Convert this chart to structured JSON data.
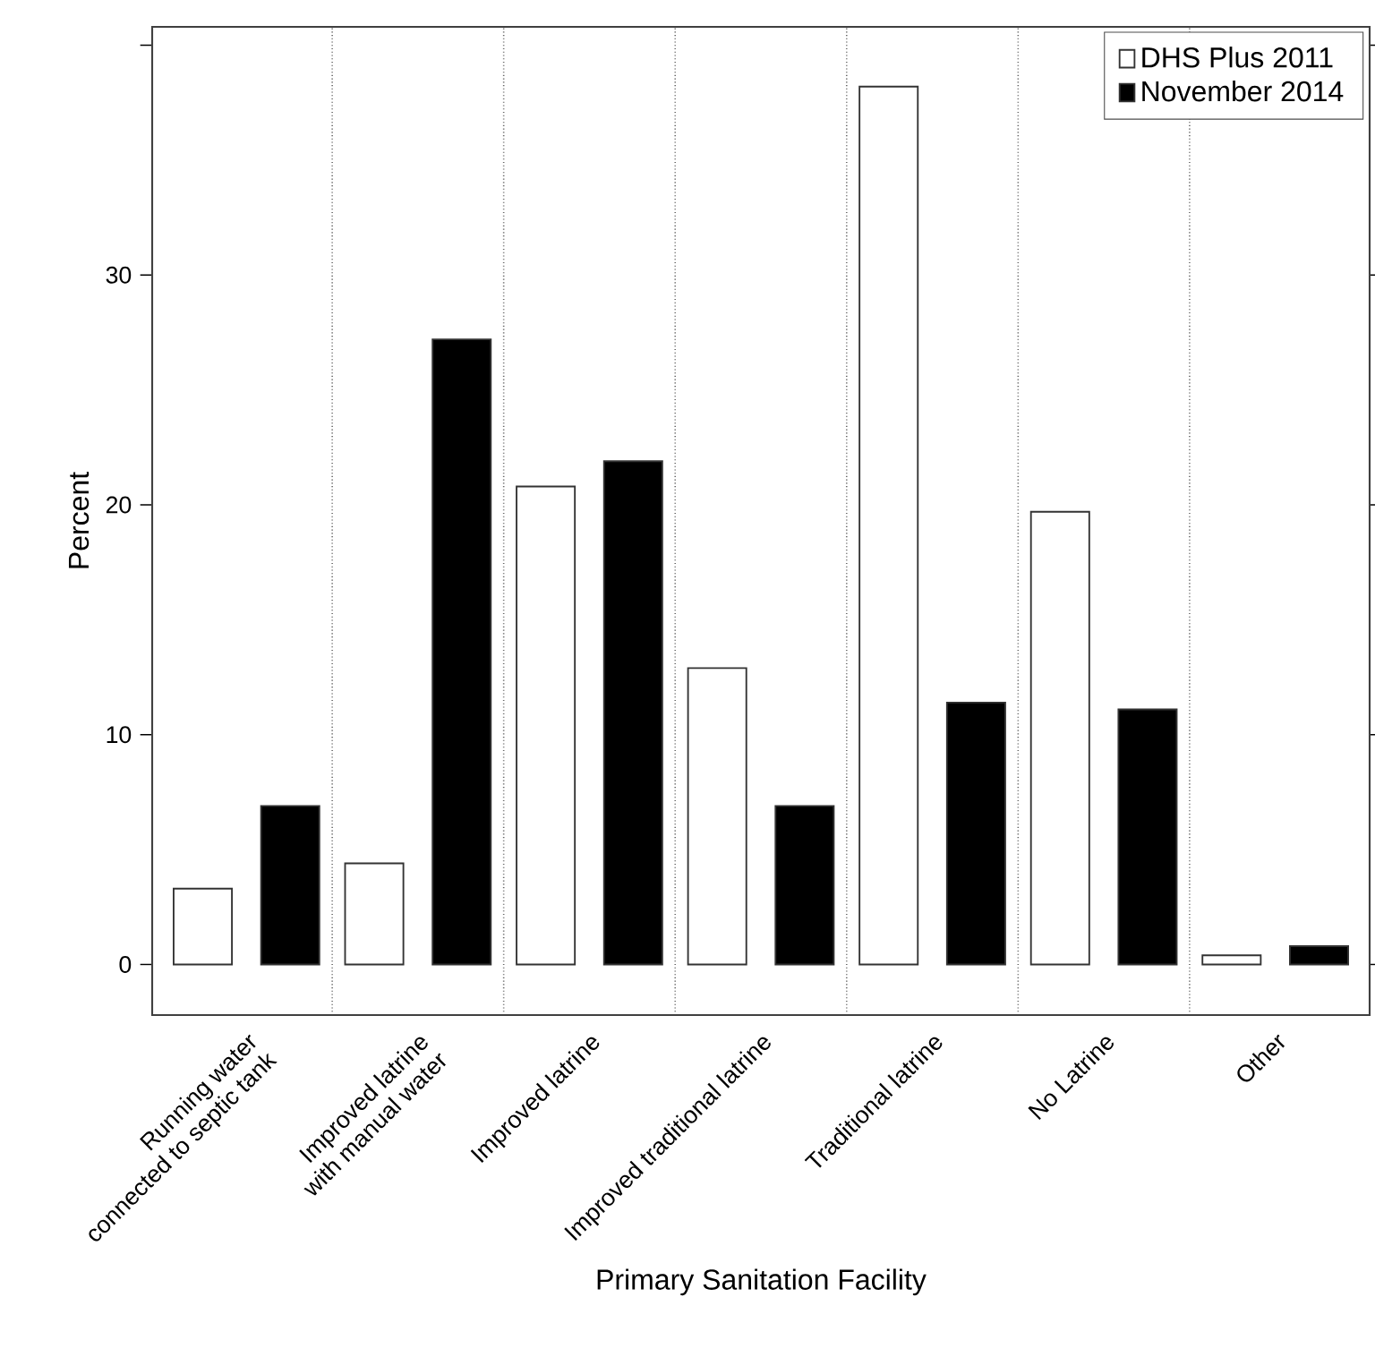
{
  "chart_data": {
    "type": "bar",
    "xlabel": "Primary Sanitation Facility",
    "ylabel": "Percent",
    "categories": [
      "Running water\nconnected to septic tank",
      "Improved latrine\nwith manual water",
      "Improved latrine",
      "Improved traditional latrine",
      "Traditional latrine",
      "No Latrine",
      "Other"
    ],
    "series": [
      {
        "name": "DHS Plus 2011",
        "color": "#ffffff",
        "values": [
          3.3,
          4.4,
          20.8,
          12.9,
          38.2,
          19.7,
          0.4
        ]
      },
      {
        "name": "November 2014",
        "color": "#000000",
        "values": [
          6.9,
          27.2,
          21.9,
          6.9,
          11.4,
          11.1,
          0.8
        ]
      }
    ],
    "ylim": [
      -2.2,
      40.8
    ],
    "yticks": [
      0,
      10,
      20,
      30,
      {
        "value": 40,
        "label": null
      }
    ],
    "grid": "x",
    "legend": "top right"
  }
}
